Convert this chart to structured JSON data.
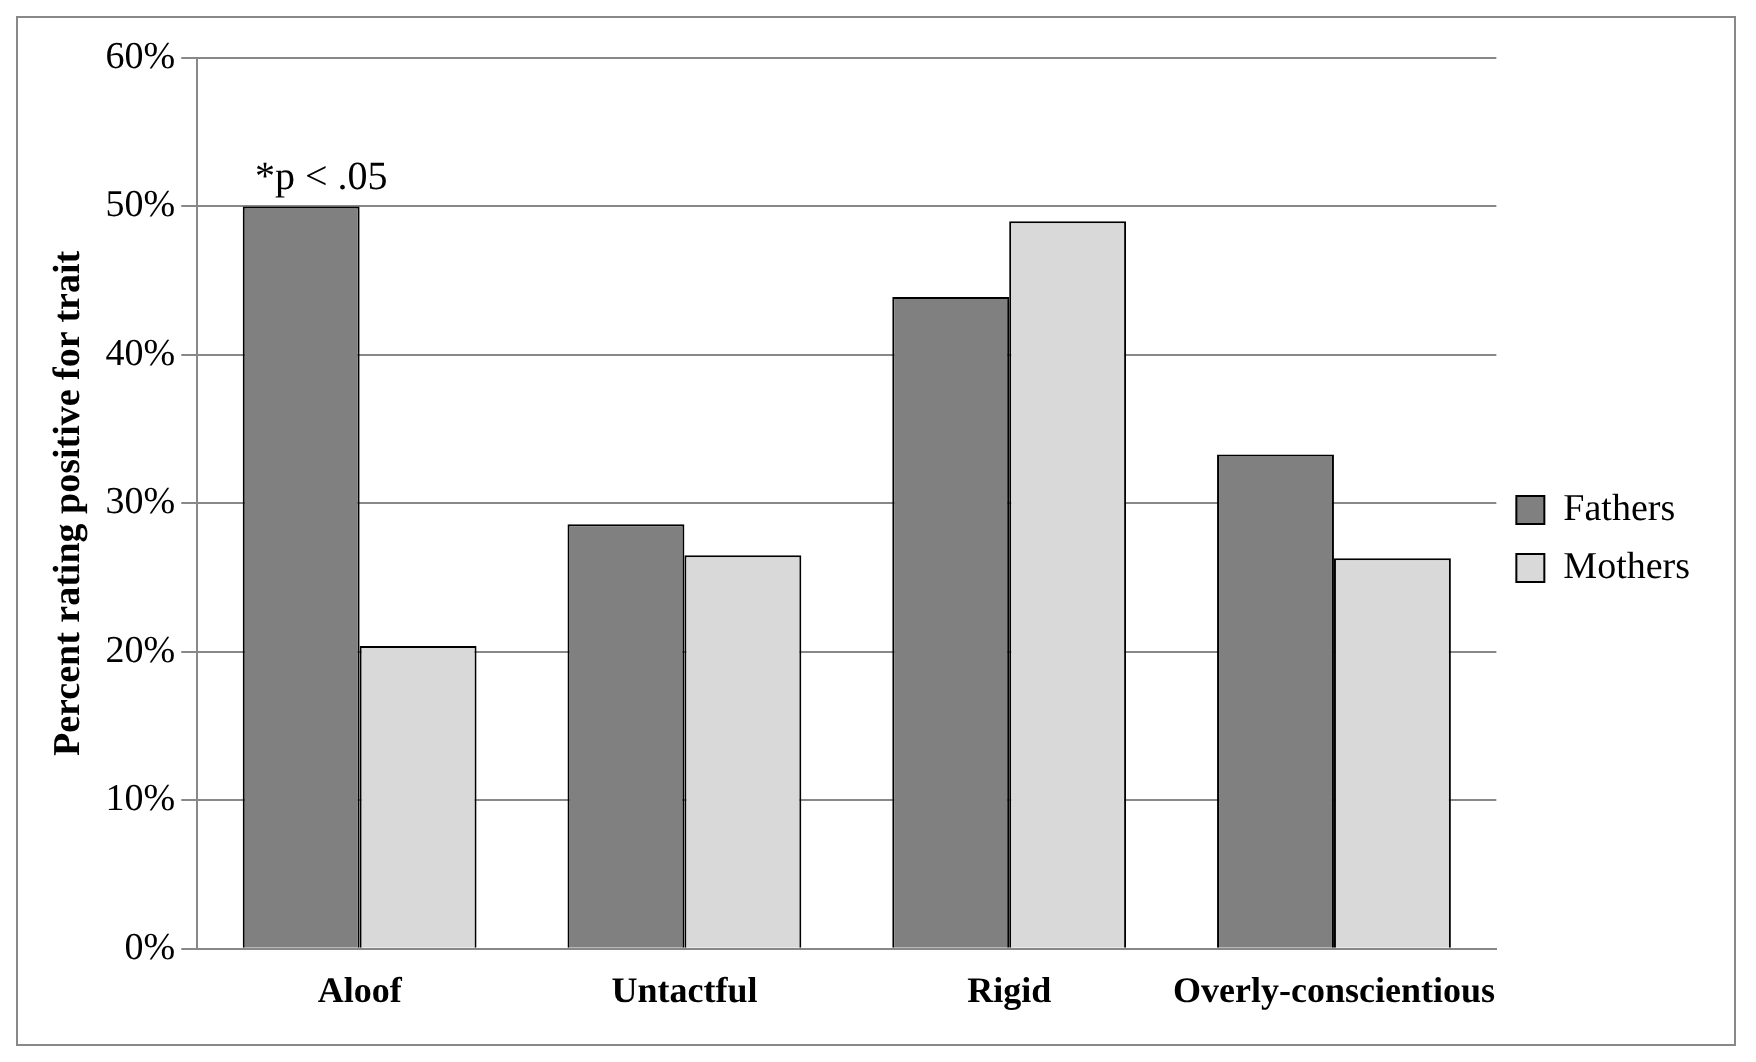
{
  "chart_data": {
    "type": "bar",
    "ylabel": "Percent rating positive for trait",
    "categories": [
      "Aloof",
      "Untactful",
      "Rigid",
      "Overly-conscientious"
    ],
    "series": [
      {
        "name": "Fathers",
        "color": "#808080",
        "values": [
          50,
          28.6,
          43.9,
          33.3
        ]
      },
      {
        "name": "Mothers",
        "color": "#d9d9d9",
        "values": [
          20.4,
          26.5,
          49,
          26.3
        ]
      }
    ],
    "ylim": [
      0,
      60
    ],
    "yticks": [
      {
        "value": 0,
        "label": "0%"
      },
      {
        "value": 10,
        "label": "10%"
      },
      {
        "value": 20,
        "label": "20%"
      },
      {
        "value": 30,
        "label": "30%"
      },
      {
        "value": 40,
        "label": "40%"
      },
      {
        "value": 50,
        "label": "50%"
      },
      {
        "value": 60,
        "label": "60%"
      }
    ],
    "grid": "y",
    "legend": "right",
    "annotations": [
      "*p < .05"
    ]
  }
}
